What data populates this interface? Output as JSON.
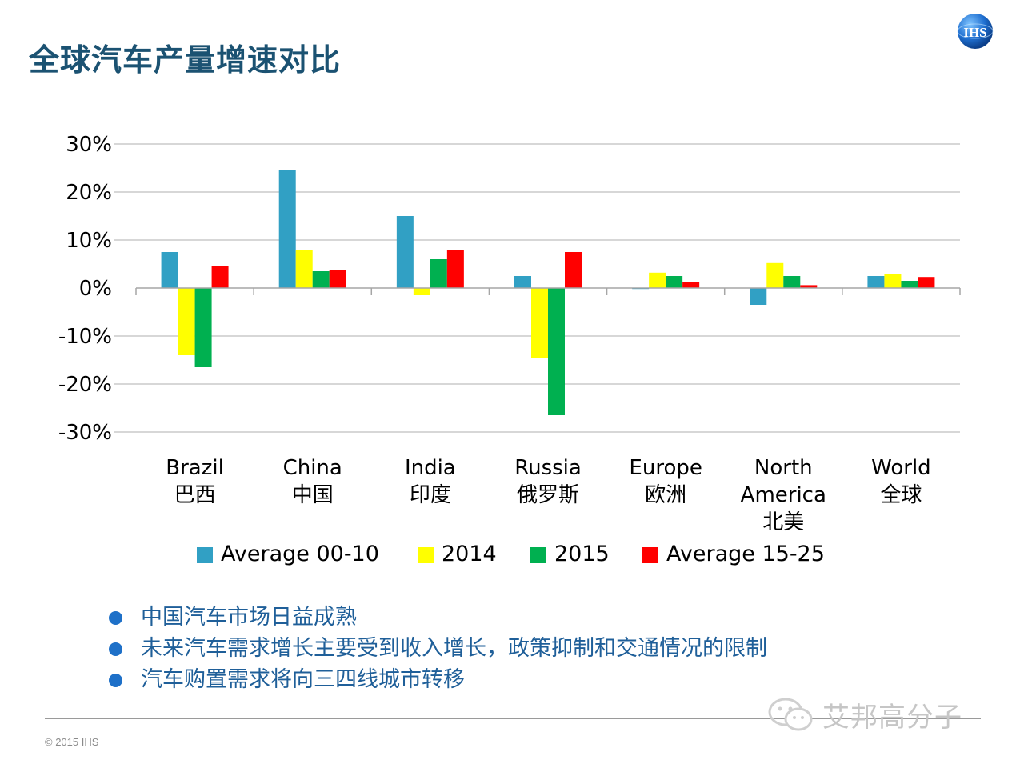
{
  "slide": {
    "title": "全球汽车产量增速对比",
    "logo_text": "IHS",
    "copyright": "© 2015 IHS",
    "watermark": "艾邦高分子"
  },
  "bullets": [
    "中国汽车市场日益成熟",
    "未来汽车需求增长主要受到收入增长，政策抑制和交通情况的限制",
    "汽车购置需求将向三四线城市转移"
  ],
  "colors": {
    "title": "#1b5272",
    "bullet_text": "#1f5f99",
    "gridline": "#bfbfbf"
  },
  "chart_data": {
    "type": "bar",
    "title": "",
    "xlabel": "",
    "ylabel": "",
    "ylim": [
      -30,
      30
    ],
    "yticks": [
      30,
      20,
      10,
      0,
      -10,
      -20,
      -30
    ],
    "ytick_labels": [
      "30%",
      "20%",
      "10%",
      "0%",
      "-10%",
      "-20%",
      "-30%"
    ],
    "grid": true,
    "legend_position": "bottom",
    "categories": [
      [
        "Brazil",
        "巴西"
      ],
      [
        "China",
        "中国"
      ],
      [
        "India",
        "印度"
      ],
      [
        "Russia",
        "俄罗斯"
      ],
      [
        "Europe",
        "欧洲"
      ],
      [
        "North",
        "America",
        "北美"
      ],
      [
        "World",
        "全球"
      ]
    ],
    "series": [
      {
        "name": "Average 00-10",
        "color": "#31a0c4",
        "values": [
          7.5,
          24.5,
          15.0,
          2.5,
          -0.2,
          -3.5,
          2.5
        ]
      },
      {
        "name": "2014",
        "color": "#ffff00",
        "values": [
          -14.0,
          8.0,
          -1.5,
          -14.5,
          3.2,
          5.2,
          3.0
        ]
      },
      {
        "name": "2015",
        "color": "#00b050",
        "values": [
          -16.5,
          3.5,
          6.0,
          -26.5,
          2.5,
          2.5,
          1.5
        ]
      },
      {
        "name": "Average 15-25",
        "color": "#ff0000",
        "values": [
          4.5,
          3.8,
          8.0,
          7.5,
          1.3,
          0.6,
          2.3
        ]
      }
    ]
  }
}
